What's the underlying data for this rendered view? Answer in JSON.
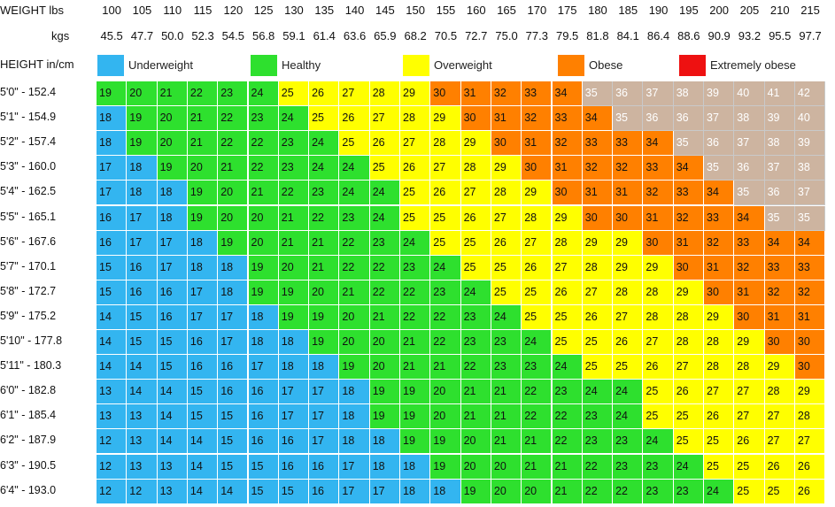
{
  "header": {
    "weight_label": "WEIGHT lbs",
    "kgs_label": "kgs",
    "height_label": "HEIGHT in/cm"
  },
  "legend": [
    {
      "key": "underweight",
      "label": "Underweight",
      "color": "#33b5f0"
    },
    {
      "key": "healthy",
      "label": "Healthy",
      "color": "#2ee02e"
    },
    {
      "key": "overweight",
      "label": "Overweight",
      "color": "#ffff00"
    },
    {
      "key": "obese",
      "label": "Obese",
      "color": "#ff8000"
    },
    {
      "key": "extreme",
      "label": "Extremely obese",
      "color": "#ee1111"
    }
  ],
  "chart_data": {
    "type": "table",
    "title": "",
    "lbs": [
      "100",
      "105",
      "110",
      "115",
      "120",
      "125",
      "130",
      "135",
      "140",
      "145",
      "150",
      "155",
      "160",
      "165",
      "170",
      "175",
      "180",
      "185",
      "190",
      "195",
      "200",
      "205",
      "210",
      "215"
    ],
    "kgs": [
      "45.5",
      "47.7",
      "50.0",
      "52.3",
      "54.5",
      "56.8",
      "59.1",
      "61.4",
      "63.6",
      "65.9",
      "68.2",
      "70.5",
      "72.7",
      "75.0",
      "77.3",
      "79.5",
      "81.8",
      "84.1",
      "86.4",
      "88.6",
      "90.9",
      "93.2",
      "95.5",
      "97.7"
    ],
    "heights": [
      "5'0\" - 152.4",
      "5'1\" - 154.9",
      "5'2\" - 157.4",
      "5'3\" - 160.0",
      "5'4\" - 162.5",
      "5'5\" - 165.1",
      "5'6\" - 167.6",
      "5'7\" - 170.1",
      "5'8\" - 172.7",
      "5'9\" - 175.2",
      "5'10\" - 177.8",
      "5'11\" - 180.3",
      "6'0\" - 182.8",
      "6'1\" - 185.4",
      "6'2\" - 187.9",
      "6'3\" - 190.5",
      "6'4\" - 193.0"
    ],
    "bmi": [
      [
        "19",
        "20",
        "21",
        "22",
        "23",
        "24",
        "25",
        "26",
        "27",
        "28",
        "29",
        "30",
        "31",
        "32",
        "33",
        "34",
        "35",
        "36",
        "37",
        "38",
        "39",
        "40",
        "41",
        "42"
      ],
      [
        "18",
        "19",
        "20",
        "21",
        "22",
        "23",
        "24",
        "25",
        "26",
        "27",
        "28",
        "29",
        "30",
        "31",
        "32",
        "33",
        "34",
        "35",
        "36",
        "36",
        "37",
        "38",
        "39",
        "40"
      ],
      [
        "18",
        "19",
        "20",
        "21",
        "22",
        "22",
        "23",
        "24",
        "25",
        "26",
        "27",
        "28",
        "29",
        "30",
        "31",
        "32",
        "33",
        "33",
        "34",
        "35",
        "36",
        "37",
        "38",
        "39"
      ],
      [
        "17",
        "18",
        "19",
        "20",
        "21",
        "22",
        "23",
        "24",
        "24",
        "25",
        "26",
        "27",
        "28",
        "29",
        "30",
        "31",
        "32",
        "32",
        "33",
        "34",
        "35",
        "36",
        "37",
        "38"
      ],
      [
        "17",
        "18",
        "18",
        "19",
        "20",
        "21",
        "22",
        "23",
        "24",
        "24",
        "25",
        "26",
        "27",
        "28",
        "29",
        "30",
        "31",
        "31",
        "32",
        "33",
        "34",
        "35",
        "36",
        "37"
      ],
      [
        "16",
        "17",
        "18",
        "19",
        "20",
        "20",
        "21",
        "22",
        "23",
        "24",
        "25",
        "25",
        "26",
        "27",
        "28",
        "29",
        "30",
        "30",
        "31",
        "32",
        "33",
        "34",
        "35",
        "35"
      ],
      [
        "16",
        "17",
        "17",
        "18",
        "19",
        "20",
        "21",
        "21",
        "22",
        "23",
        "24",
        "25",
        "25",
        "26",
        "27",
        "28",
        "29",
        "29",
        "30",
        "31",
        "32",
        "33",
        "34",
        "34"
      ],
      [
        "15",
        "16",
        "17",
        "18",
        "18",
        "19",
        "20",
        "21",
        "22",
        "22",
        "23",
        "24",
        "25",
        "25",
        "26",
        "27",
        "28",
        "29",
        "29",
        "30",
        "31",
        "32",
        "33",
        "33"
      ],
      [
        "15",
        "16",
        "16",
        "17",
        "18",
        "19",
        "19",
        "20",
        "21",
        "22",
        "22",
        "23",
        "24",
        "25",
        "25",
        "26",
        "27",
        "28",
        "28",
        "29",
        "30",
        "31",
        "32",
        "32"
      ],
      [
        "14",
        "15",
        "16",
        "17",
        "17",
        "18",
        "19",
        "19",
        "20",
        "21",
        "22",
        "22",
        "23",
        "24",
        "25",
        "25",
        "26",
        "27",
        "28",
        "28",
        "29",
        "30",
        "31",
        "31"
      ],
      [
        "14",
        "15",
        "15",
        "16",
        "17",
        "18",
        "18",
        "19",
        "20",
        "20",
        "21",
        "22",
        "23",
        "23",
        "24",
        "25",
        "25",
        "26",
        "27",
        "28",
        "28",
        "29",
        "30",
        "30"
      ],
      [
        "14",
        "14",
        "15",
        "16",
        "16",
        "17",
        "18",
        "18",
        "19",
        "20",
        "21",
        "21",
        "22",
        "23",
        "23",
        "24",
        "25",
        "25",
        "26",
        "27",
        "28",
        "28",
        "29",
        "30"
      ],
      [
        "13",
        "14",
        "14",
        "15",
        "16",
        "16",
        "17",
        "17",
        "18",
        "19",
        "19",
        "20",
        "21",
        "21",
        "22",
        "23",
        "24",
        "24",
        "25",
        "26",
        "27",
        "27",
        "28",
        "29"
      ],
      [
        "13",
        "13",
        "14",
        "15",
        "15",
        "16",
        "17",
        "17",
        "18",
        "19",
        "19",
        "20",
        "21",
        "21",
        "22",
        "22",
        "23",
        "24",
        "25",
        "25",
        "26",
        "27",
        "27",
        "28"
      ],
      [
        "12",
        "13",
        "14",
        "14",
        "15",
        "16",
        "16",
        "17",
        "18",
        "18",
        "19",
        "19",
        "20",
        "21",
        "21",
        "22",
        "23",
        "23",
        "24",
        "25",
        "25",
        "26",
        "27",
        "27"
      ],
      [
        "12",
        "13",
        "13",
        "14",
        "15",
        "15",
        "16",
        "16",
        "17",
        "18",
        "18",
        "19",
        "20",
        "20",
        "21",
        "21",
        "22",
        "23",
        "23",
        "24",
        "25",
        "25",
        "26",
        "26"
      ],
      [
        "12",
        "12",
        "13",
        "14",
        "14",
        "15",
        "15",
        "16",
        "17",
        "17",
        "18",
        "18",
        "19",
        "20",
        "20",
        "21",
        "22",
        "22",
        "23",
        "23",
        "24",
        "25",
        "25",
        "26"
      ]
    ],
    "category_rule": "BMI < 18.5 Underweight; 18.5-24.9 Healthy; 25-29.9 Overweight; 30-34.9 Obese; >=35 Extremely obese"
  }
}
